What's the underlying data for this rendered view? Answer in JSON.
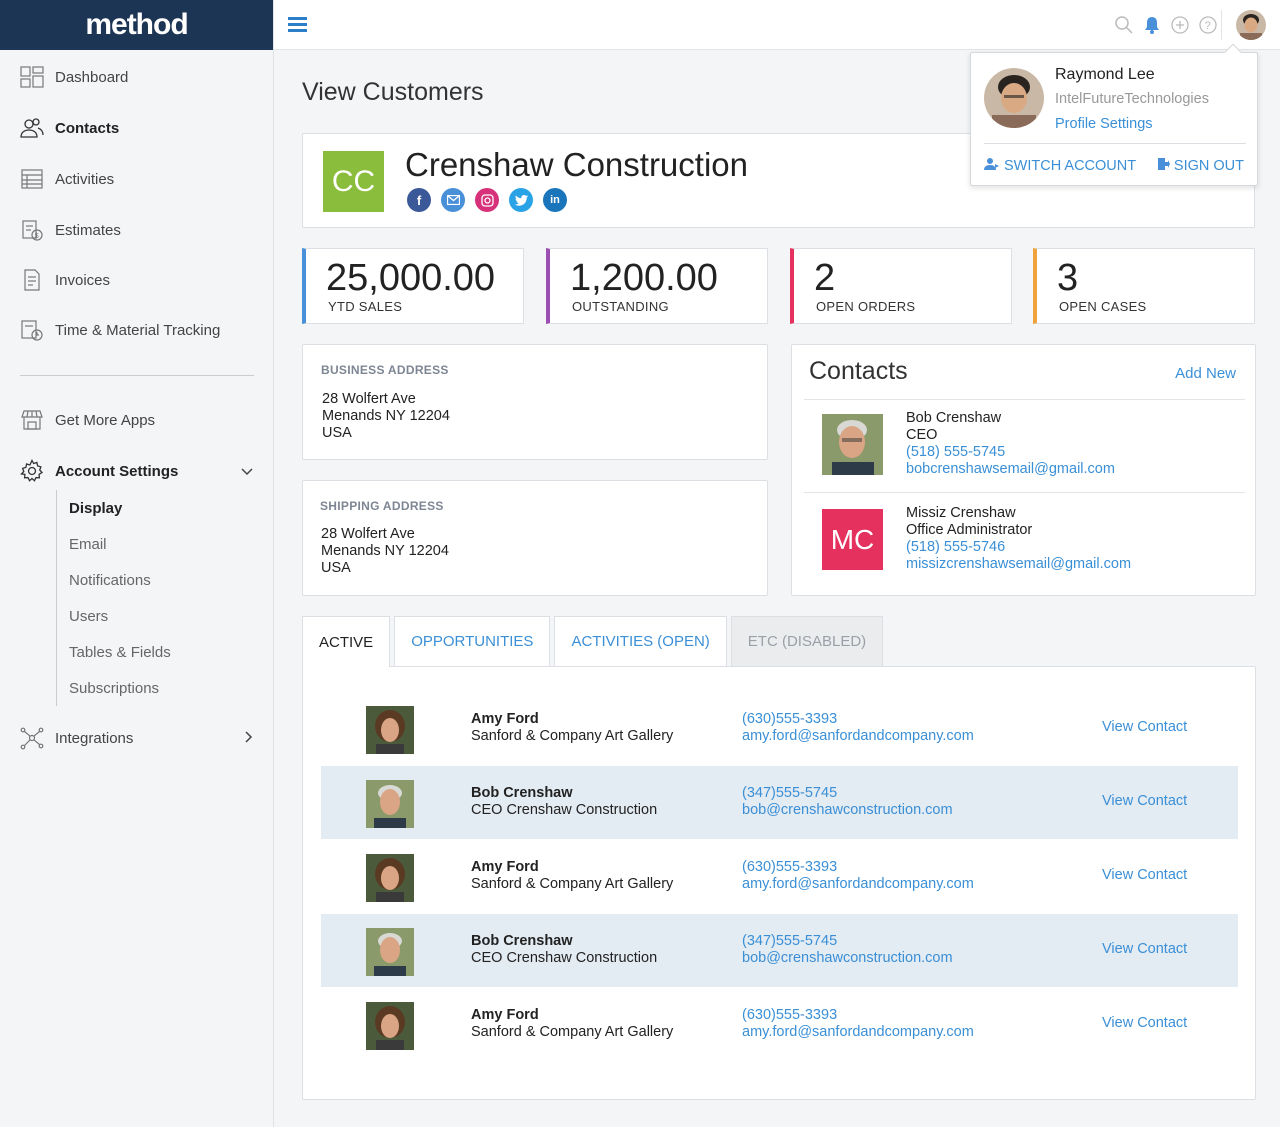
{
  "app": {
    "logo": "method"
  },
  "sidebar": {
    "items": [
      {
        "label": "Dashboard",
        "icon": "dashboard-icon"
      },
      {
        "label": "Contacts",
        "icon": "contacts-icon"
      },
      {
        "label": "Activities",
        "icon": "activities-icon"
      },
      {
        "label": "Estimates",
        "icon": "estimates-icon"
      },
      {
        "label": "Invoices",
        "icon": "invoices-icon"
      },
      {
        "label": "Time & Material Tracking",
        "icon": "time-tracking-icon"
      },
      {
        "label": "Get More Apps",
        "icon": "store-icon"
      },
      {
        "label": "Account Settings",
        "icon": "gear-icon"
      },
      {
        "label": "Integrations",
        "icon": "integrations-icon"
      }
    ],
    "account_sub": [
      "Display",
      "Email",
      "Notifications",
      "Users",
      "Tables & Fields",
      "Subscriptions"
    ]
  },
  "page": {
    "title": "View Customers"
  },
  "customer": {
    "initials": "CC",
    "name": "Crenshaw Construction",
    "socials": [
      "facebook",
      "email",
      "instagram",
      "twitter",
      "linkedin"
    ]
  },
  "stats": [
    {
      "value": "25,000.00",
      "label": "YTD SALES",
      "color": "#4a90d9"
    },
    {
      "value": "1,200.00",
      "label": "OUTSTANDING",
      "color": "#9b4fb0"
    },
    {
      "value": "2",
      "label": "OPEN ORDERS",
      "color": "#e4315e"
    },
    {
      "value": "3",
      "label": "OPEN CASES",
      "color": "#f2a23c"
    }
  ],
  "business_address": {
    "heading": "BUSINESS ADDRESS",
    "line1": "28 Wolfert Ave",
    "line2": "Menands NY 12204",
    "line3": "USA"
  },
  "shipping_address": {
    "heading": "SHIPPING ADDRESS",
    "line1": "28 Wolfert Ave",
    "line2": "Menands NY 12204",
    "line3": "USA"
  },
  "contacts": {
    "title": "Contacts",
    "add_label": "Add New",
    "list": [
      {
        "name": "Bob Crenshaw",
        "role": "CEO",
        "phone": "(518) 555-5745",
        "email": "bobcrenshawsemail@gmail.com"
      },
      {
        "name": "Missiz Crenshaw",
        "role": "Office Administrator",
        "phone": "(518) 555-5746",
        "email": "missizcrenshawsemail@gmail.com",
        "initials": "MC"
      }
    ]
  },
  "tabs": [
    {
      "label": "ACTIVE"
    },
    {
      "label": "OPPORTUNITIES"
    },
    {
      "label": "ACTIVITIES (OPEN)"
    },
    {
      "label": "ETC (DISABLED)"
    }
  ],
  "rows": [
    {
      "name": "Amy Ford",
      "company": "Sanford & Company Art Gallery",
      "phone": "(630)555-3393",
      "email": "amy.ford@sanfordandcompany.com",
      "action": "View Contact"
    },
    {
      "name": "Bob Crenshaw",
      "company": "CEO Crenshaw Construction",
      "phone": "(347)555-5745",
      "email": "bob@crenshawconstruction.com",
      "action": "View Contact"
    },
    {
      "name": "Amy Ford",
      "company": "Sanford & Company Art Gallery",
      "phone": "(630)555-3393",
      "email": "amy.ford@sanfordandcompany.com",
      "action": "View Contact"
    },
    {
      "name": "Bob Crenshaw",
      "company": "CEO Crenshaw Construction",
      "phone": "(347)555-5745",
      "email": "bob@crenshawconstruction.com",
      "action": "View Contact"
    },
    {
      "name": "Amy Ford",
      "company": "Sanford & Company Art Gallery",
      "phone": "(630)555-3393",
      "email": "amy.ford@sanfordandcompany.com",
      "action": "View Contact"
    }
  ],
  "user_menu": {
    "name": "Raymond Lee",
    "org": "IntelFutureTechnologies",
    "profile_label": "Profile Settings",
    "switch_label": "SWITCH ACCOUNT",
    "signout_label": "SIGN OUT"
  },
  "colors": {
    "brand": "#1d3555",
    "link": "#3a8fd6",
    "customer_logo": "#8bbd3c",
    "row_alt": "#e3ebf3"
  }
}
